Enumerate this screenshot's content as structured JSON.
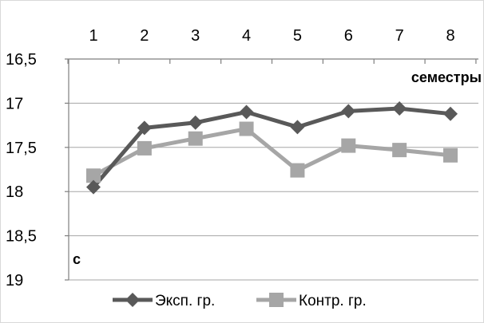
{
  "chart_data": {
    "type": "line",
    "x": [
      1,
      2,
      3,
      4,
      5,
      6,
      7,
      8
    ],
    "x_tick_labels": [
      "1",
      "2",
      "3",
      "4",
      "5",
      "6",
      "7",
      "8"
    ],
    "y_tick_labels": [
      "16,5",
      "17",
      "17,5",
      "18",
      "18,5",
      "19"
    ],
    "y_ticks": [
      16.5,
      17,
      17.5,
      18,
      18.5,
      19
    ],
    "ylim": [
      16.5,
      19
    ],
    "y_inverted": true,
    "x_axis_position": "top",
    "xlabel": "семестры",
    "ylabel": "с",
    "grid": "horizontal",
    "legend_position": "bottom",
    "series": [
      {
        "name": "Эксп. гр.",
        "values": [
          17.95,
          17.28,
          17.22,
          17.1,
          17.27,
          17.09,
          17.06,
          17.12
        ],
        "color": "#595959",
        "marker": "diamond"
      },
      {
        "name": "Контр. гр.",
        "values": [
          17.82,
          17.51,
          17.4,
          17.29,
          17.76,
          17.48,
          17.53,
          17.59
        ],
        "color": "#a6a6a6",
        "marker": "square"
      }
    ]
  }
}
